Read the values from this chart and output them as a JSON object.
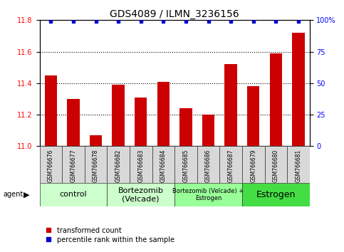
{
  "title": "GDS4089 / ILMN_3236156",
  "samples": [
    "GSM766676",
    "GSM766677",
    "GSM766678",
    "GSM766682",
    "GSM766683",
    "GSM766684",
    "GSM766685",
    "GSM766686",
    "GSM766687",
    "GSM766679",
    "GSM766680",
    "GSM766681"
  ],
  "bar_values": [
    11.45,
    11.3,
    11.07,
    11.39,
    11.31,
    11.41,
    11.24,
    11.2,
    11.52,
    11.38,
    11.59,
    11.72
  ],
  "bar_color": "#cc0000",
  "percentile_color": "#0000cc",
  "ylim_left": [
    11.0,
    11.8
  ],
  "ylim_right": [
    0,
    100
  ],
  "yticks_left": [
    11.0,
    11.2,
    11.4,
    11.6,
    11.8
  ],
  "yticks_right": [
    0,
    25,
    50,
    75,
    100
  ],
  "groups": [
    {
      "label": "control",
      "start": 0,
      "end": 3,
      "color": "#ccffcc",
      "fontsize": 8
    },
    {
      "label": "Bortezomib\n(Velcade)",
      "start": 3,
      "end": 6,
      "color": "#ccffcc",
      "fontsize": 8
    },
    {
      "label": "Bortezomib (Velcade) +\nEstrogen",
      "start": 6,
      "end": 9,
      "color": "#99ff99",
      "fontsize": 6
    },
    {
      "label": "Estrogen",
      "start": 9,
      "end": 12,
      "color": "#44dd44",
      "fontsize": 9
    }
  ],
  "legend_bar_label": "transformed count",
  "legend_pct_label": "percentile rank within the sample",
  "title_fontsize": 10,
  "tick_fontsize": 7,
  "sample_fontsize": 5.5,
  "bar_width": 0.55
}
